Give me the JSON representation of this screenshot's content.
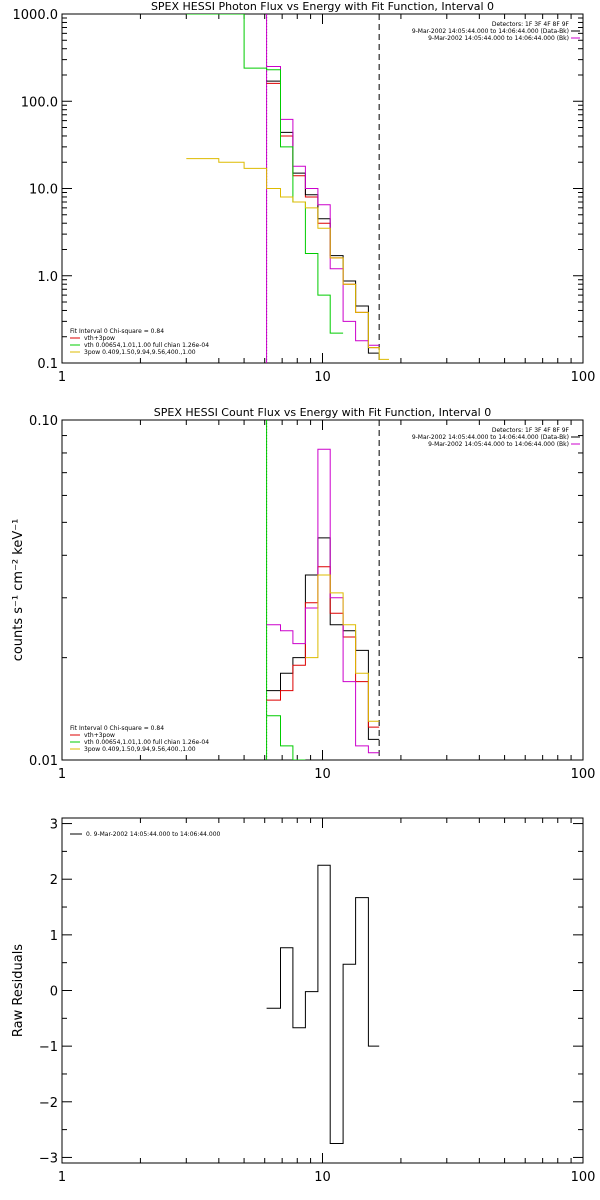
{
  "chart_data": [
    {
      "type": "line",
      "title": "SPEX HESSI Photon Flux vs Energy with Fit Function, Interval 0",
      "xlim": [
        1,
        100
      ],
      "ylim": [
        0.1,
        1000
      ],
      "xscale": "log",
      "yscale": "log",
      "ylabel": "",
      "x_ticks": [
        "1",
        "10",
        "100"
      ],
      "y_ticks": [
        "0.1",
        "1.0",
        "10.0",
        "100.0",
        "1000.0"
      ],
      "y_tick_values": [
        0.1,
        1,
        10,
        100,
        1000
      ],
      "vlines": [
        {
          "x": 6.1,
          "style": "dotted",
          "color": "#000000"
        },
        {
          "x": 6.1,
          "style": "solid",
          "color": "#cc00cc"
        },
        {
          "x": 16.5,
          "style": "dashed",
          "color": "#000000"
        }
      ],
      "header_lines": [
        "Detectors: 1F 3F 4F 8F 9F",
        "9-Mar-2002 14:05:44.000 to 14:06:44.000 (Data-Bk)",
        "9-Mar-2002 14:05:44.000 to 14:06:44.000 (Bk)"
      ],
      "header_colors": [
        "",
        "#000000",
        "#cc00cc"
      ],
      "legend_lines": [
        "Fit Interval 0   Chi-square = 0.84",
        "vth+3pow",
        "vth 0.00654,1.01,1.00  full chian 1.26e-04",
        "3pow 0.409,1.50,9.94,9.56,400.,1.00"
      ],
      "legend_colors": [
        "",
        "#dd0000",
        "#00cc00",
        "#ddbb00"
      ],
      "series": [
        {
          "name": "vth+3pow",
          "color": "#dd0000",
          "edges": [
            6.1,
            6.9,
            7.7,
            8.6,
            9.6,
            10.7,
            12.0,
            13.4,
            15.0,
            16.5
          ],
          "values": [
            160,
            40,
            14,
            8.0,
            4.0,
            1.6,
            0.8,
            0.38,
            0.15
          ]
        },
        {
          "name": "data",
          "color": "#000000",
          "edges": [
            6.1,
            6.9,
            7.7,
            8.6,
            9.6,
            10.7,
            12.0,
            13.4,
            15.0,
            16.5
          ],
          "values": [
            170,
            44,
            15,
            8.5,
            4.5,
            1.7,
            0.87,
            0.45,
            0.13
          ]
        },
        {
          "name": "bk",
          "color": "#cc00cc",
          "edges": [
            6.1,
            6.9,
            7.7,
            8.6,
            9.6,
            10.7,
            12.0,
            13.4,
            15.0,
            16.5
          ],
          "values": [
            250,
            62,
            18,
            10,
            6.5,
            1.2,
            0.3,
            0.18,
            0.16
          ]
        },
        {
          "name": "vth",
          "color": "#00cc00",
          "edges": [
            3.0,
            4.0,
            5.0,
            6.1,
            6.9,
            7.7,
            8.6,
            9.6,
            10.7,
            12.0
          ],
          "values": [
            1000,
            1000,
            240,
            230,
            30,
            7.0,
            1.8,
            0.6,
            0.22
          ]
        },
        {
          "name": "3pow",
          "color": "#ddbb00",
          "edges": [
            3.0,
            4.0,
            5.0,
            6.1,
            6.9,
            7.7,
            8.6,
            9.6,
            10.7,
            12.0,
            13.4,
            15.0,
            16.5,
            18.0
          ],
          "values": [
            22,
            20,
            17,
            10,
            8.0,
            7.0,
            6.0,
            3.5,
            1.6,
            0.8,
            0.38,
            0.15,
            0.11
          ]
        }
      ]
    },
    {
      "type": "line",
      "title": "SPEX HESSI Count Flux vs Energy with Fit Function, Interval 0",
      "xlim": [
        1,
        100
      ],
      "ylim": [
        0.01,
        0.1
      ],
      "xscale": "log",
      "yscale": "log",
      "ylabel": "counts s⁻¹ cm⁻² keV⁻¹",
      "x_ticks": [
        "1",
        "10",
        "100"
      ],
      "y_ticks": [
        "0.01",
        "0.10"
      ],
      "y_tick_values": [
        0.01,
        0.1
      ],
      "vlines": [
        {
          "x": 6.1,
          "style": "dotted",
          "color": "#000000"
        },
        {
          "x": 6.1,
          "style": "solid",
          "color": "#00cc00"
        },
        {
          "x": 16.5,
          "style": "dashed",
          "color": "#000000"
        }
      ],
      "header_lines": [
        "Detectors: 1F 3F 4F 8F 9F",
        "9-Mar-2002 14:05:44.000 to 14:06:44.000 (Data-Bk)",
        "9-Mar-2002 14:05:44.000 to 14:06:44.000 (Bk)"
      ],
      "header_colors": [
        "",
        "#000000",
        "#cc00cc"
      ],
      "legend_lines": [
        "Fit Interval 0   Chi-square = 0.84",
        "vth+3pow",
        "vth 0.00654,1.01,1.00  full chian 1.26e-04",
        "3pow 0.409,1.50,9.94,9.56,400.,1.00"
      ],
      "legend_colors": [
        "",
        "#dd0000",
        "#00cc00",
        "#ddbb00"
      ],
      "series": [
        {
          "name": "data",
          "color": "#000000",
          "edges": [
            6.1,
            6.9,
            7.7,
            8.6,
            9.6,
            10.7,
            12.0,
            13.4,
            15.0,
            16.5
          ],
          "values": [
            0.016,
            0.018,
            0.02,
            0.035,
            0.045,
            0.025,
            0.024,
            0.021,
            0.0115
          ]
        },
        {
          "name": "vth+3pow",
          "color": "#dd0000",
          "edges": [
            6.1,
            6.9,
            7.7,
            8.6,
            9.6,
            10.7,
            12.0,
            13.4,
            15.0,
            16.5
          ],
          "values": [
            0.015,
            0.016,
            0.019,
            0.029,
            0.037,
            0.027,
            0.023,
            0.017,
            0.0125
          ]
        },
        {
          "name": "bk",
          "color": "#cc00cc",
          "edges": [
            6.1,
            6.9,
            7.7,
            8.6,
            9.6,
            10.7,
            12.0,
            13.4,
            15.0,
            16.5
          ],
          "values": [
            0.025,
            0.024,
            0.022,
            0.028,
            0.082,
            0.03,
            0.017,
            0.011,
            0.0105
          ]
        },
        {
          "name": "vth",
          "color": "#00cc00",
          "edges": [
            6.1,
            6.9,
            7.7,
            8.6
          ],
          "values": [
            0.0135,
            0.011,
            0.0095
          ]
        },
        {
          "name": "3pow",
          "color": "#ddbb00",
          "edges": [
            8.6,
            9.6,
            10.7,
            12.0,
            13.4,
            15.0,
            16.5
          ],
          "values": [
            0.02,
            0.035,
            0.031,
            0.025,
            0.018,
            0.013
          ]
        }
      ]
    },
    {
      "type": "line",
      "title": "",
      "xlim": [
        1,
        100
      ],
      "ylim": [
        -3.1,
        3.1
      ],
      "xscale": "log",
      "yscale": "linear",
      "ylabel": "Raw Residuals",
      "x_ticks": [
        "1",
        "10",
        "100"
      ],
      "y_ticks": [
        "3",
        "2",
        "1",
        "0",
        "−1",
        "−2",
        "−3"
      ],
      "y_tick_values": [
        3,
        2,
        1,
        0,
        -1,
        -2,
        -3
      ],
      "vlines": [],
      "header_lines": [],
      "header_colors": [],
      "legend_lines": [
        "0.  9-Mar-2002 14:05:44.000 to 14:06:44.000"
      ],
      "legend_colors": [
        "#000000"
      ],
      "series": [
        {
          "name": "residuals",
          "color": "#000000",
          "edges": [
            6.1,
            6.9,
            7.7,
            8.6,
            9.6,
            10.7,
            12.0,
            13.4,
            15.0,
            16.5
          ],
          "values": [
            -0.32,
            0.77,
            -0.67,
            -0.02,
            2.25,
            -2.75,
            0.47,
            1.67,
            -1.0
          ]
        }
      ]
    }
  ]
}
